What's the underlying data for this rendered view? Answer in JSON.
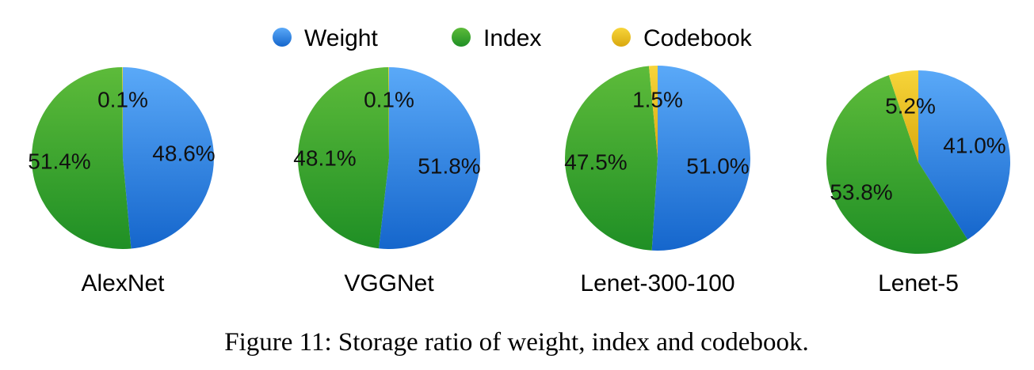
{
  "legend": {
    "entries": [
      "Weight",
      "Index",
      "Codebook"
    ]
  },
  "colors": {
    "Weight": [
      "#5aa9f8",
      "#1566cc"
    ],
    "Index": [
      "#5dbb3a",
      "#1f8f25"
    ],
    "Codebook": [
      "#f7d53a",
      "#d9a80e"
    ]
  },
  "chart_data": [
    {
      "type": "pie",
      "title": "AlexNet",
      "slices": [
        {
          "name": "Weight",
          "value": 48.6,
          "label": "48.6%"
        },
        {
          "name": "Index",
          "value": 51.4,
          "label": "51.4%"
        },
        {
          "name": "Codebook",
          "value": 0.1,
          "label": "0.1%"
        }
      ]
    },
    {
      "type": "pie",
      "title": "VGGNet",
      "slices": [
        {
          "name": "Weight",
          "value": 51.8,
          "label": "51.8%"
        },
        {
          "name": "Index",
          "value": 48.1,
          "label": "48.1%"
        },
        {
          "name": "Codebook",
          "value": 0.1,
          "label": "0.1%"
        }
      ]
    },
    {
      "type": "pie",
      "title": "Lenet-300-100",
      "slices": [
        {
          "name": "Weight",
          "value": 51.0,
          "label": "51.0%"
        },
        {
          "name": "Index",
          "value": 47.5,
          "label": "47.5%"
        },
        {
          "name": "Codebook",
          "value": 1.5,
          "label": "1.5%"
        }
      ]
    },
    {
      "type": "pie",
      "title": "Lenet-5",
      "slices": [
        {
          "name": "Weight",
          "value": 41.0,
          "label": "41.0%"
        },
        {
          "name": "Index",
          "value": 53.8,
          "label": "53.8%"
        },
        {
          "name": "Codebook",
          "value": 5.2,
          "label": "5.2%"
        }
      ]
    }
  ],
  "caption": "Figure 11: Storage ratio of weight, index and codebook."
}
